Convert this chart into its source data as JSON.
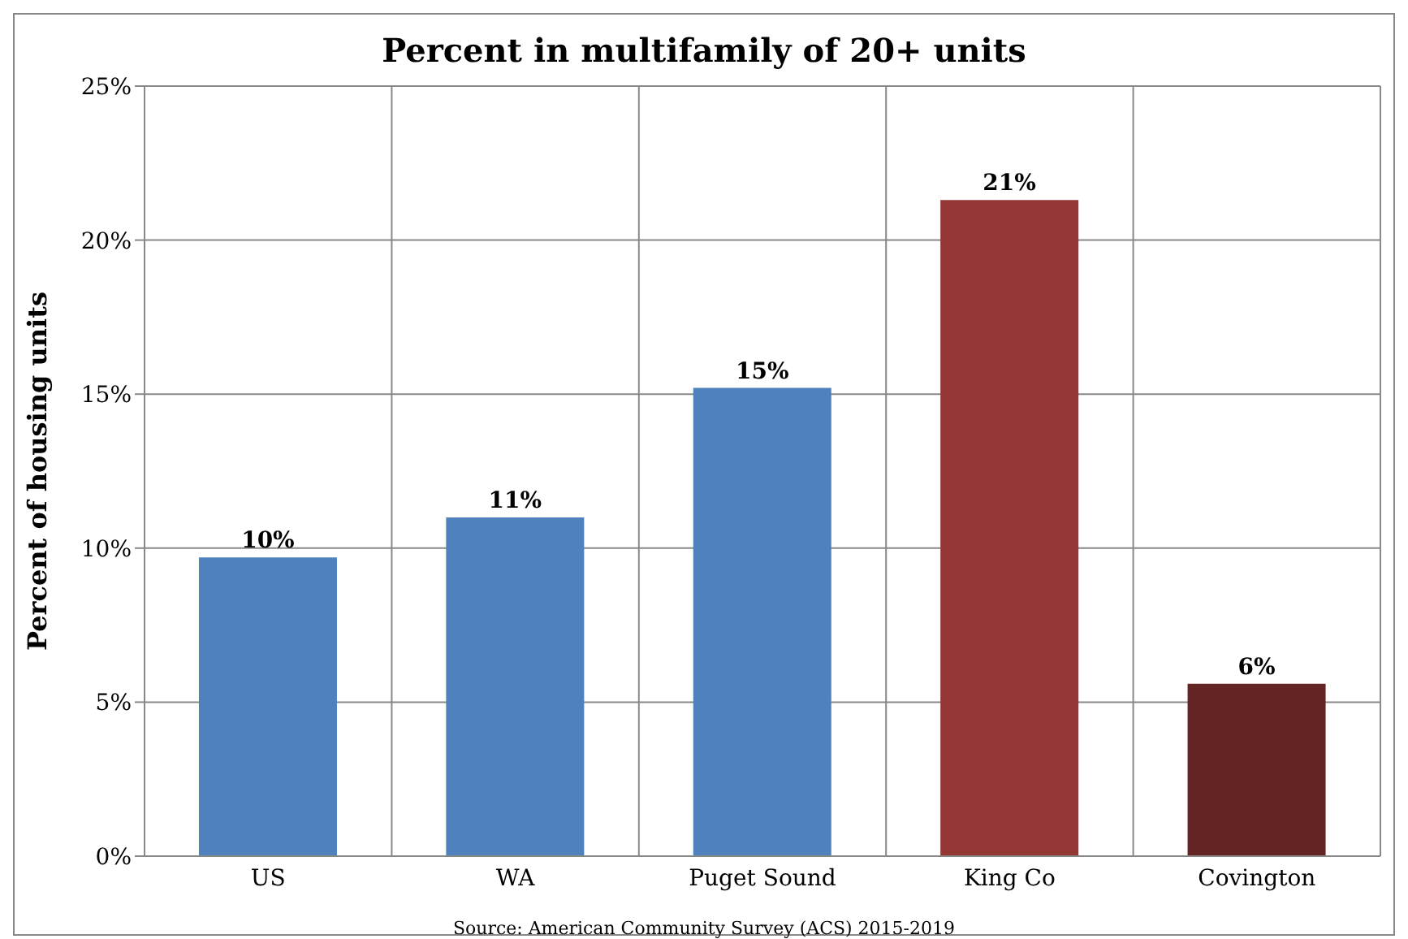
{
  "chart_data": {
    "type": "bar",
    "title": "Percent in multifamily of 20+ units",
    "ylabel": "Percent of housing units",
    "categories": [
      "US",
      "WA",
      "Puget Sound",
      "King Co",
      "Covington"
    ],
    "values": [
      9.7,
      11.0,
      15.2,
      21.3,
      5.6
    ],
    "colors": [
      "#4f81bd",
      "#4f81bd",
      "#4f81bd",
      "#943634",
      "#632523"
    ],
    "value_labels": [
      "10%",
      "11%",
      "15%",
      "21%",
      "6%"
    ],
    "ylim": [
      0,
      25
    ],
    "yticks": [
      {
        "value": 0,
        "label": "0%"
      },
      {
        "value": 5,
        "label": "5%"
      },
      {
        "value": 10,
        "label": "10%"
      },
      {
        "value": 15,
        "label": "15%"
      },
      {
        "value": 20,
        "label": "20%"
      },
      {
        "value": 25,
        "label": "25%"
      }
    ],
    "grid": true,
    "annotations": [
      "Source: American Community Survey (ACS) 2015-2019"
    ]
  }
}
